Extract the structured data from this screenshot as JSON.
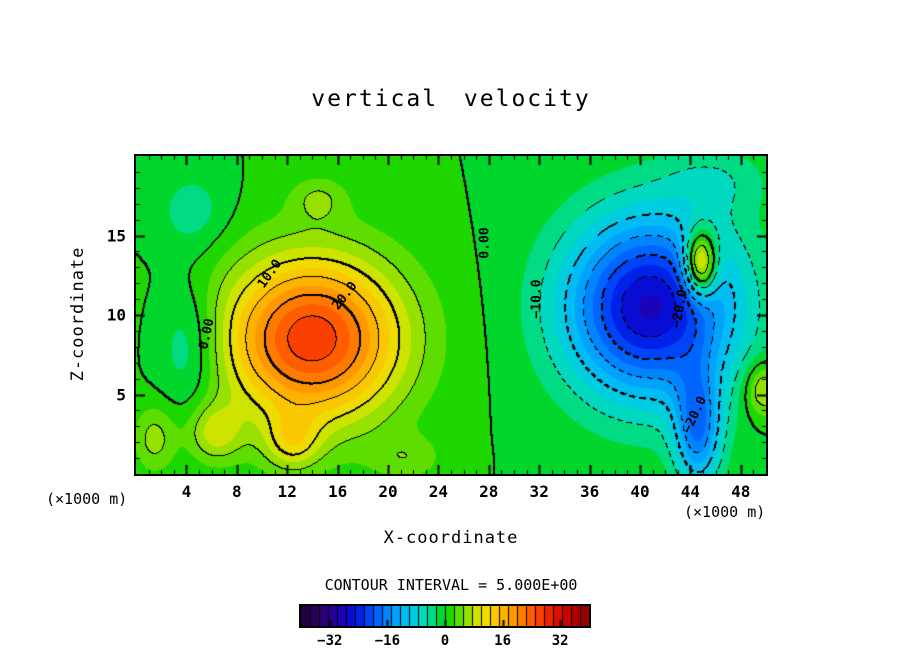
{
  "figure": {
    "background_color": "#ffffff",
    "title": "vertical velocity",
    "xlabel": "X-coordinate",
    "ylabel": "Z-coordinate",
    "units_left": "(×1000 m)",
    "units_right": "(×1000 m)",
    "contour_interval_text": "CONTOUR INTERVAL = 5.000E+00"
  },
  "chart_data": {
    "type": "heatmap",
    "subtype": "filled-contour",
    "title": "vertical velocity",
    "xlabel": "X-coordinate",
    "ylabel": "Z-coordinate",
    "x_units": "×1000 m",
    "z_units": "×1000 m",
    "x_range": [
      0,
      50
    ],
    "z_range": [
      0,
      20
    ],
    "x_ticks": [
      4,
      8,
      12,
      16,
      20,
      24,
      28,
      32,
      36,
      40,
      44,
      48
    ],
    "z_ticks": [
      5,
      10,
      15
    ],
    "x_minor_tick_step": 1,
    "z_minor_tick_step": 1,
    "contour_interval": 5.0,
    "value_max": 27,
    "value_min": -28,
    "positive_cell_center": {
      "x": 14.0,
      "z": 8.5
    },
    "negative_cell_center": {
      "x": 40.8,
      "z": 10.5
    },
    "field_blobs": [
      {
        "amp": 27,
        "x": 14.0,
        "z": 8.5,
        "sx": 4.9,
        "sz": 3.6
      },
      {
        "amp": -28,
        "x": 40.8,
        "z": 10.5,
        "sx": 4.7,
        "sz": 4.0
      },
      {
        "amp": 24,
        "x": 44.8,
        "z": 13.2,
        "sx": 0.9,
        "sz": 1.4
      },
      {
        "amp": -16,
        "x": 44.6,
        "z": 2.8,
        "sx": 1.3,
        "sz": 2.6
      },
      {
        "amp": 8,
        "x": 6.3,
        "z": 2.6,
        "sx": 1.5,
        "sz": 1.3
      },
      {
        "amp": 8,
        "x": 12.4,
        "z": 2.0,
        "sx": 1.6,
        "sz": 1.3
      },
      {
        "amp": 6,
        "x": 1.5,
        "z": 2.2,
        "sx": 1.2,
        "sz": 1.5
      },
      {
        "amp": 9,
        "x": 49.8,
        "z": 5.3,
        "sx": 1.0,
        "sz": 1.2
      },
      {
        "amp": -6,
        "x": 4.2,
        "z": 8.0,
        "sx": 1.8,
        "sz": 2.8
      },
      {
        "amp": -4,
        "x": 4.5,
        "z": 16.5,
        "sx": 2.0,
        "sz": 1.8
      },
      {
        "amp": 4.5,
        "x": 14.5,
        "z": 17.3,
        "sx": 1.6,
        "sz": 1.0
      },
      {
        "amp": 4,
        "x": 21.5,
        "z": 1.0,
        "sx": 2.0,
        "sz": 1.0
      },
      {
        "amp": -4,
        "x": 46.0,
        "z": 18.5,
        "sx": 3.0,
        "sz": 1.5
      }
    ],
    "contour_labels": [
      {
        "text": "0.00",
        "x": 5.6,
        "z": 8.8,
        "rot": -78
      },
      {
        "text": "10.0",
        "x": 10.6,
        "z": 12.6,
        "rot": -55
      },
      {
        "text": "20.0",
        "x": 16.6,
        "z": 11.2,
        "rot": -52
      },
      {
        "text": "0.00",
        "x": 27.7,
        "z": 14.5,
        "rot": -90
      },
      {
        "text": "−10.0",
        "x": 31.8,
        "z": 11.0,
        "rot": -90
      },
      {
        "text": "−20.0",
        "x": 43.2,
        "z": 10.4,
        "rot": -80
      },
      {
        "text": "−20.0",
        "x": 44.4,
        "z": 3.7,
        "rot": -65
      }
    ],
    "colormap_stops": [
      [
        -40,
        "#1a0030"
      ],
      [
        -35,
        "#30006a"
      ],
      [
        -30,
        "#2400ab"
      ],
      [
        -25,
        "#0010e0"
      ],
      [
        -20,
        "#0055ff"
      ],
      [
        -15,
        "#0095ff"
      ],
      [
        -10,
        "#00c8f0"
      ],
      [
        -5,
        "#00ddb0"
      ],
      [
        0,
        "#00d400"
      ],
      [
        5,
        "#7ce000"
      ],
      [
        10,
        "#e8e400"
      ],
      [
        15,
        "#ffbf00"
      ],
      [
        20,
        "#ff8a00"
      ],
      [
        25,
        "#ff4e00"
      ],
      [
        30,
        "#e81400"
      ],
      [
        35,
        "#b80000"
      ],
      [
        40,
        "#8c0000"
      ]
    ],
    "colorbar": {
      "min": -40,
      "max": 40,
      "ticks": [
        -32,
        -16,
        0,
        16,
        32
      ],
      "segments": 32
    }
  }
}
